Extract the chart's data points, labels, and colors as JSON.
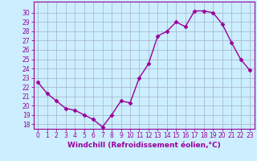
{
  "x": [
    0,
    1,
    2,
    3,
    4,
    5,
    6,
    7,
    8,
    9,
    10,
    11,
    12,
    13,
    14,
    15,
    16,
    17,
    18,
    19,
    20,
    21,
    22,
    23
  ],
  "y": [
    22.5,
    21.3,
    20.5,
    19.7,
    19.5,
    19.0,
    18.5,
    17.7,
    19.0,
    20.5,
    20.3,
    23.0,
    24.5,
    27.5,
    28.0,
    29.0,
    28.5,
    30.2,
    30.2,
    30.0,
    28.8,
    26.8,
    25.0,
    23.8
  ],
  "color": "#990099",
  "bg_color": "#cceeff",
  "grid_color": "#aabbcc",
  "xlabel": "Windchill (Refroidissement éolien,°C)",
  "ylim": [
    17.5,
    31.2
  ],
  "xlim": [
    -0.5,
    23.5
  ],
  "yticks": [
    18,
    19,
    20,
    21,
    22,
    23,
    24,
    25,
    26,
    27,
    28,
    29,
    30
  ],
  "xticks": [
    0,
    1,
    2,
    3,
    4,
    5,
    6,
    7,
    8,
    9,
    10,
    11,
    12,
    13,
    14,
    15,
    16,
    17,
    18,
    19,
    20,
    21,
    22,
    23
  ],
  "marker": "D",
  "markersize": 2.5,
  "linewidth": 1.0,
  "xlabel_fontsize": 6.5,
  "tick_fontsize": 5.5
}
